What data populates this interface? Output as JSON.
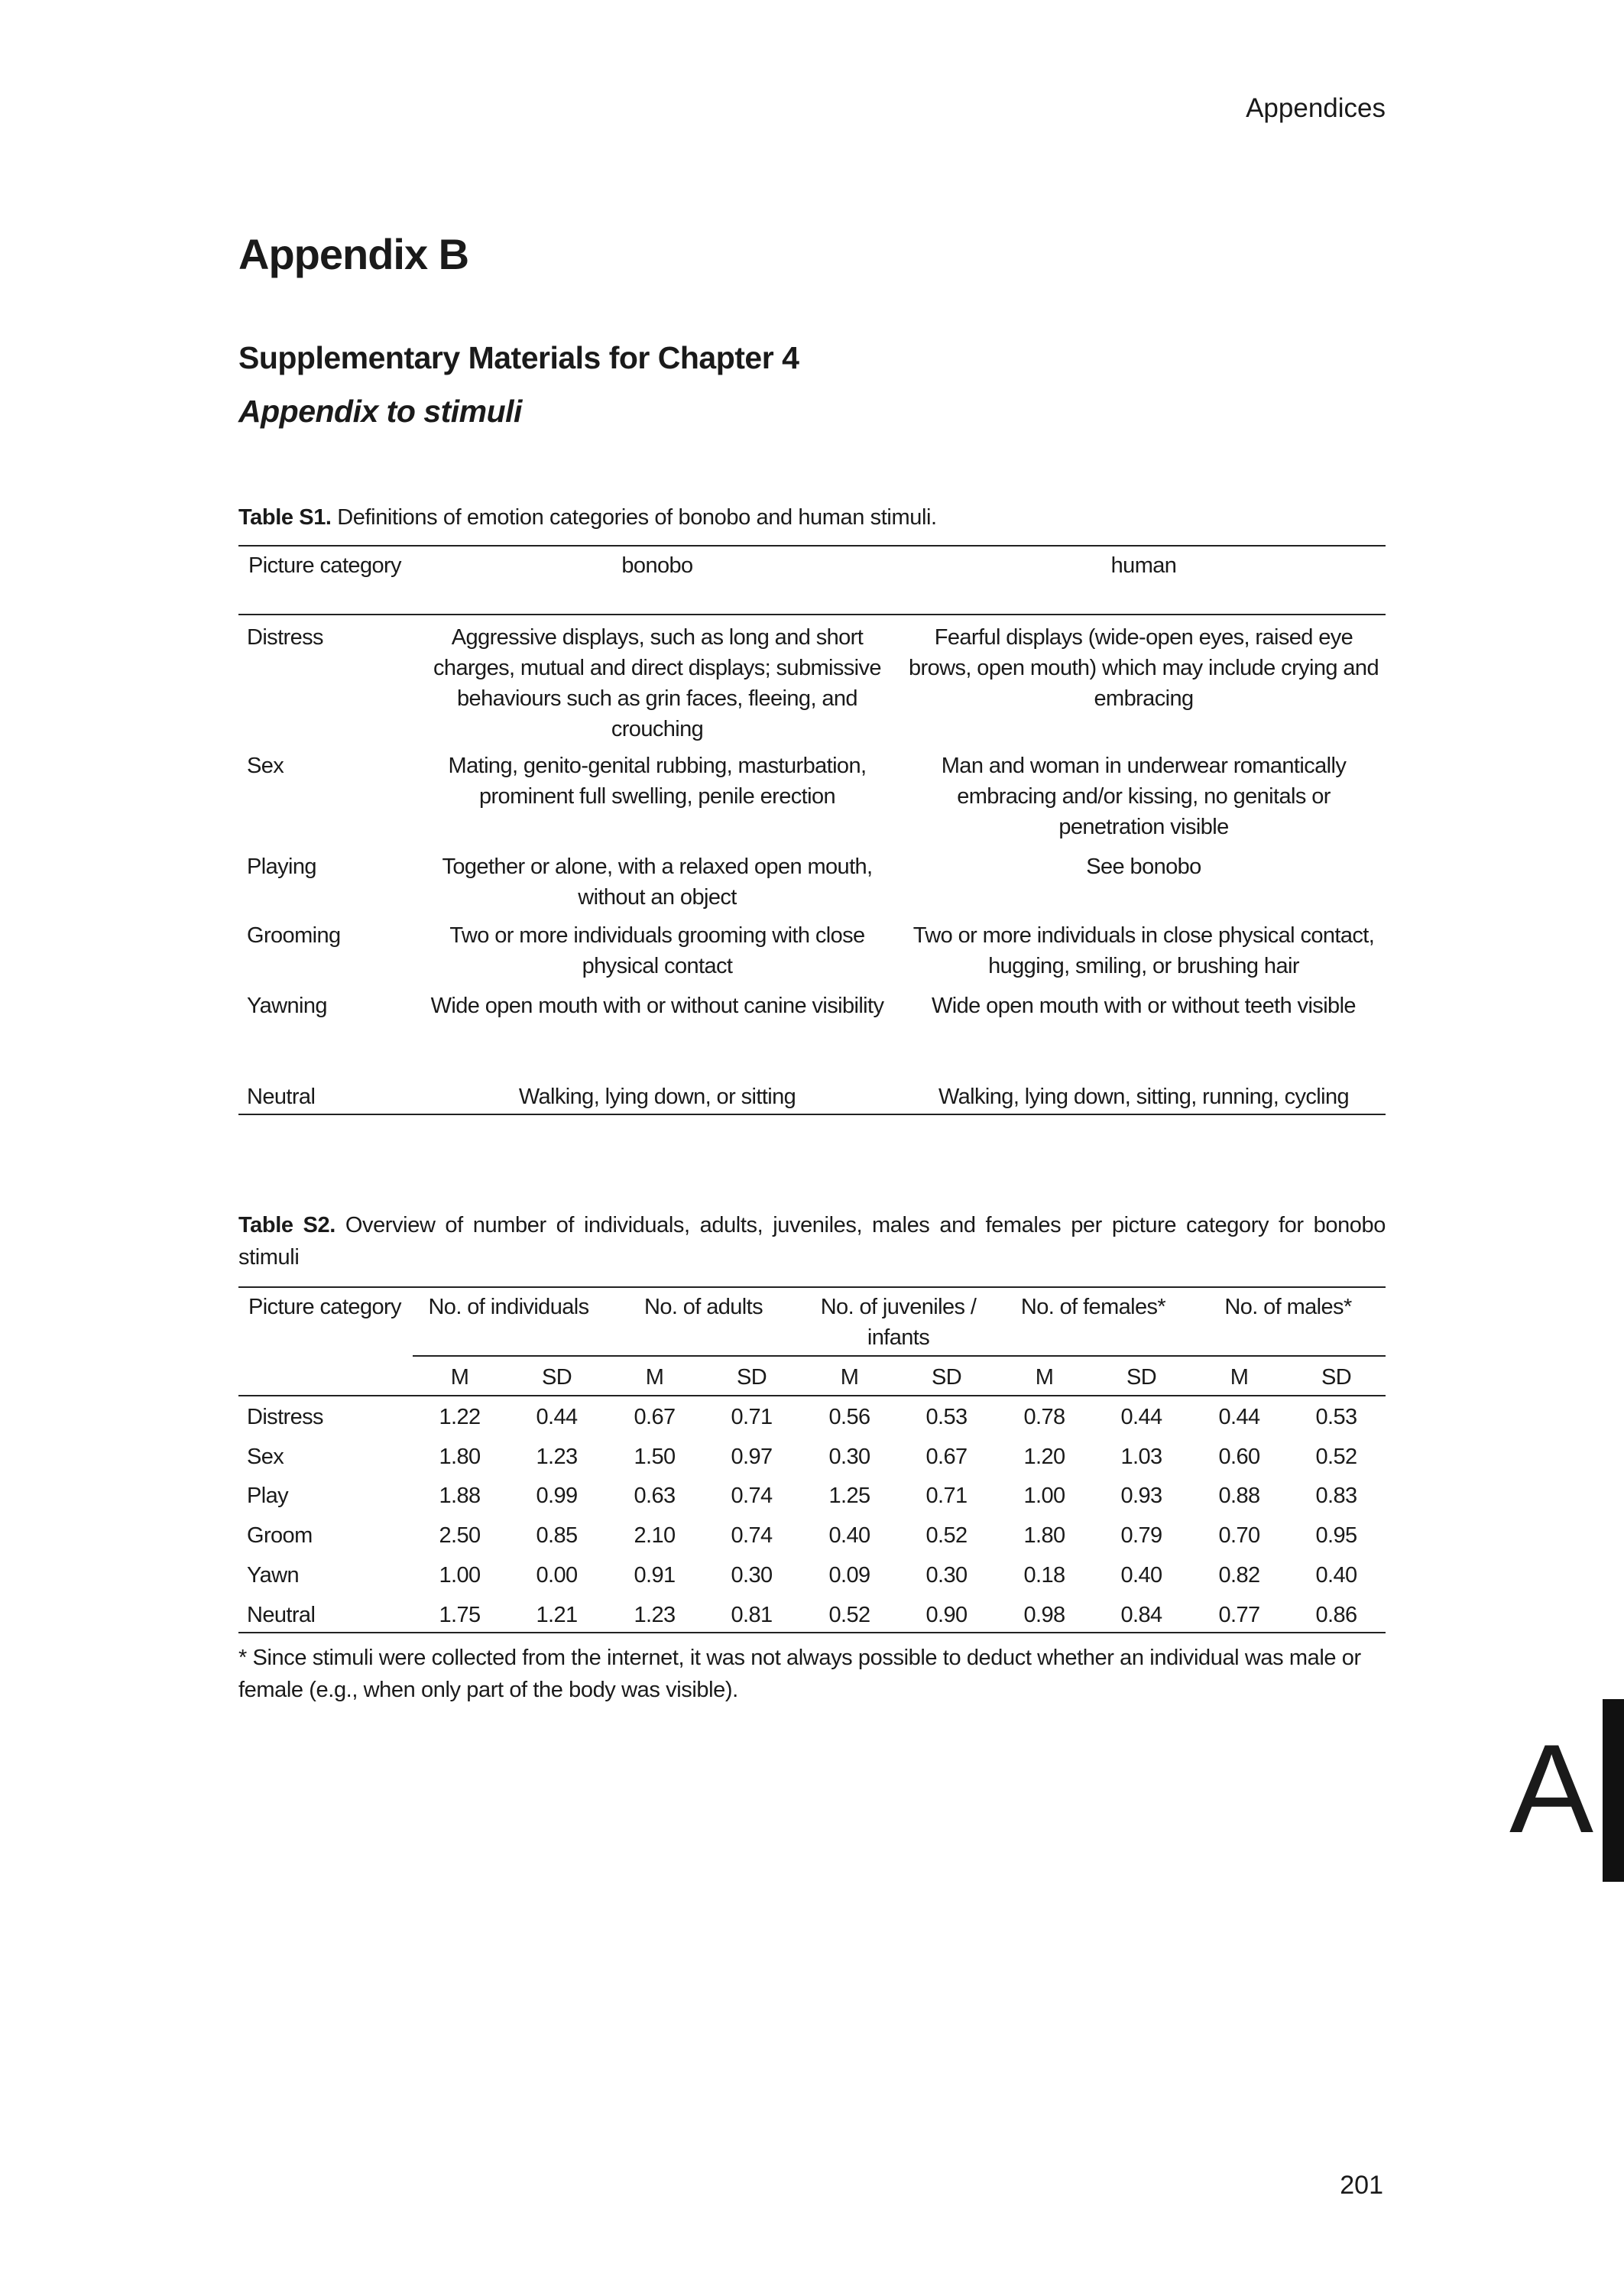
{
  "running_head": "Appendices",
  "title": "Appendix B",
  "subtitle": "Supplementary Materials for Chapter 4",
  "section": "Appendix to stimuli",
  "table_s1": {
    "caption_label": "Table S1.",
    "caption_text": " Definitions of emotion categories of bonobo and human stimuli.",
    "headers": [
      "Picture category",
      "bonobo",
      "human"
    ],
    "rows": [
      {
        "category": "Distress",
        "bonobo": "Aggressive displays, such as long and short charges, mutual and direct displays; submissive behaviours such as grin faces, fleeing, and crouching",
        "human": "Fearful displays (wide-open eyes, raised eye brows, open mouth) which may include crying and embracing"
      },
      {
        "category": "Sex",
        "bonobo": "Mating, genito-genital rubbing, masturbation, prominent full swelling, penile erection",
        "human": "Man and woman in underwear romantically embracing and/or kissing, no genitals or penetration visible"
      },
      {
        "category": "Playing",
        "bonobo": "Together or alone, with a relaxed open mouth, without an object",
        "human": "See bonobo"
      },
      {
        "category": "Grooming",
        "bonobo": "Two or more individuals grooming with close physical contact",
        "human": "Two or more individuals in close physical contact, hugging, smiling, or brushing hair"
      },
      {
        "category": "Yawning",
        "bonobo": "Wide open mouth with or without canine visibility",
        "human": "Wide open mouth with or without teeth visible"
      },
      {
        "category": "Neutral",
        "bonobo": "Walking, lying down, or sitting",
        "human": "Walking, lying down, sitting, running, cycling"
      }
    ]
  },
  "table_s2": {
    "caption_label": "Table S2.",
    "caption_text": " Overview of number of individuals, adults, juveniles, males and females per picture category for bonobo stimuli",
    "category_header": "Picture category",
    "groups": [
      "No. of individuals",
      "No. of adults",
      "No. of juveniles / infants",
      "No. of females*",
      "No. of males*"
    ],
    "subheaders": [
      "M",
      "SD"
    ],
    "rows": [
      {
        "category": "Distress",
        "values": [
          "1.22",
          "0.44",
          "0.67",
          "0.71",
          "0.56",
          "0.53",
          "0.78",
          "0.44",
          "0.44",
          "0.53"
        ]
      },
      {
        "category": "Sex",
        "values": [
          "1.80",
          "1.23",
          "1.50",
          "0.97",
          "0.30",
          "0.67",
          "1.20",
          "1.03",
          "0.60",
          "0.52"
        ]
      },
      {
        "category": "Play",
        "values": [
          "1.88",
          "0.99",
          "0.63",
          "0.74",
          "1.25",
          "0.71",
          "1.00",
          "0.93",
          "0.88",
          "0.83"
        ]
      },
      {
        "category": "Groom",
        "values": [
          "2.50",
          "0.85",
          "2.10",
          "0.74",
          "0.40",
          "0.52",
          "1.80",
          "0.79",
          "0.70",
          "0.95"
        ]
      },
      {
        "category": "Yawn",
        "values": [
          "1.00",
          "0.00",
          "0.91",
          "0.30",
          "0.09",
          "0.30",
          "0.18",
          "0.40",
          "0.82",
          "0.40"
        ]
      },
      {
        "category": "Neutral",
        "values": [
          "1.75",
          "1.21",
          "1.23",
          "0.81",
          "0.52",
          "0.90",
          "0.98",
          "0.84",
          "0.77",
          "0.86"
        ]
      }
    ],
    "footnote": "* Since stimuli were collected from the internet, it was not always possible to deduct whether an individual was male or female (e.g., when only part of the body was visible)."
  },
  "thumb_tab": "A",
  "page_number": "201"
}
